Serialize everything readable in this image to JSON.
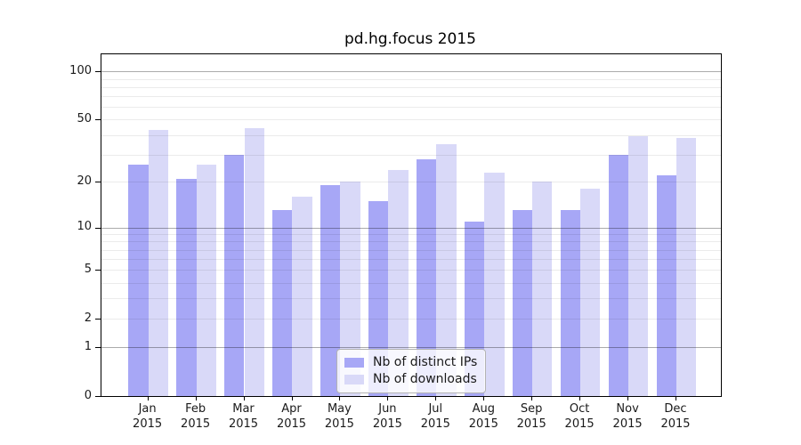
{
  "title": "pd.hg.focus 2015",
  "legend": {
    "items": [
      {
        "label": "Nb of distinct IPs",
        "color": "#a7a7f6"
      },
      {
        "label": "Nb of downloads",
        "color": "#d9d9f8"
      }
    ]
  },
  "chart_data": {
    "type": "bar",
    "title": "pd.hg.focus 2015",
    "scale": "log10(1+x)",
    "categories": [
      "Jan",
      "Feb",
      "Mar",
      "Apr",
      "May",
      "Jun",
      "Jul",
      "Aug",
      "Sep",
      "Oct",
      "Nov",
      "Dec"
    ],
    "year_label": "2015",
    "series": [
      {
        "name": "Nb of distinct IPs",
        "color": "#a7a7f6",
        "values": [
          26,
          21,
          30,
          13,
          19,
          15,
          28,
          11,
          13,
          13,
          30,
          22
        ]
      },
      {
        "name": "Nb of downloads",
        "color": "#d9d9f8",
        "values": [
          43,
          26,
          44,
          16,
          20,
          24,
          35,
          23,
          20,
          18,
          39,
          38
        ]
      }
    ],
    "yticks": [
      0,
      1,
      2,
      5,
      10,
      20,
      50,
      100
    ],
    "ylim": [
      0,
      130
    ],
    "grid": "horizontal",
    "legend_position": "bottom-center-inside"
  }
}
